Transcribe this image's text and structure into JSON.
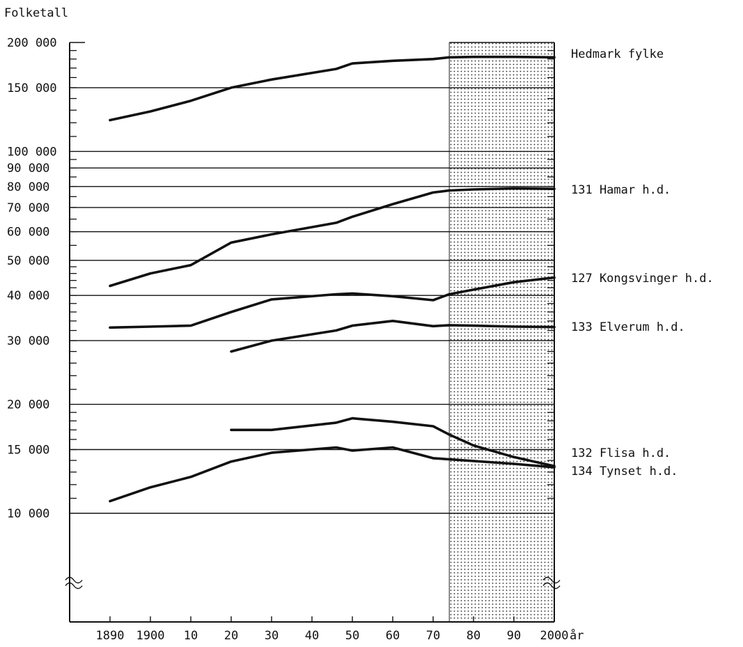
{
  "chart_data": {
    "type": "line",
    "ylabel": "Folketall",
    "x_unit_label": "år",
    "y_scale": "log",
    "ylim": [
      10000,
      200000
    ],
    "xlim": [
      1880,
      2000
    ],
    "y_ticks": [
      {
        "value": 200000,
        "label": "200 000"
      },
      {
        "value": 150000,
        "label": "150 000"
      },
      {
        "value": 100000,
        "label": "100 000"
      },
      {
        "value": 90000,
        "label": "90 000"
      },
      {
        "value": 80000,
        "label": "80 000"
      },
      {
        "value": 70000,
        "label": "70 000"
      },
      {
        "value": 60000,
        "label": "60 000"
      },
      {
        "value": 50000,
        "label": "50 000"
      },
      {
        "value": 40000,
        "label": "40 000"
      },
      {
        "value": 30000,
        "label": "30 000"
      },
      {
        "value": 20000,
        "label": "20 000"
      },
      {
        "value": 15000,
        "label": "15 000"
      },
      {
        "value": 10000,
        "label": "10 000"
      }
    ],
    "x_ticks": [
      {
        "value": 1890,
        "label": "1890"
      },
      {
        "value": 1900,
        "label": "1900"
      },
      {
        "value": 1910,
        "label": "10"
      },
      {
        "value": 1920,
        "label": "20"
      },
      {
        "value": 1930,
        "label": "30"
      },
      {
        "value": 1940,
        "label": "40"
      },
      {
        "value": 1950,
        "label": "50"
      },
      {
        "value": 1960,
        "label": "60"
      },
      {
        "value": 1970,
        "label": "70"
      },
      {
        "value": 1980,
        "label": "80"
      },
      {
        "value": 1990,
        "label": "90"
      },
      {
        "value": 2000,
        "label": "2000"
      }
    ],
    "projection_start": 1974,
    "grid": "horizontal",
    "series": [
      {
        "name": "Hedmark fylke",
        "x": [
          1890,
          1900,
          1910,
          1920,
          1930,
          1946,
          1950,
          1960,
          1970,
          1974,
          1980,
          1990,
          2000
        ],
        "y": [
          122000,
          129000,
          138000,
          150000,
          158000,
          169000,
          175000,
          178000,
          180000,
          182000,
          182500,
          182500,
          182000
        ]
      },
      {
        "name": "131 Hamar h.d.",
        "x": [
          1890,
          1900,
          1910,
          1920,
          1930,
          1946,
          1950,
          1960,
          1970,
          1974,
          1980,
          1990,
          2000
        ],
        "y": [
          42500,
          46000,
          48500,
          56000,
          59000,
          63500,
          66000,
          71500,
          77000,
          78000,
          78500,
          79000,
          78800
        ]
      },
      {
        "name": "127 Kongsvinger h.d.",
        "x": [
          1890,
          1900,
          1910,
          1920,
          1930,
          1946,
          1950,
          1960,
          1970,
          1974,
          1980,
          1990,
          2000
        ],
        "y": [
          32600,
          32800,
          33000,
          36000,
          39000,
          40300,
          40500,
          39800,
          38800,
          40300,
          41500,
          43500,
          44800
        ]
      },
      {
        "name": "133 Elverum h.d.",
        "x": [
          1920,
          1930,
          1946,
          1950,
          1960,
          1970,
          1974,
          1980,
          1990,
          2000
        ],
        "y": [
          28000,
          30000,
          32000,
          33000,
          34000,
          32900,
          33100,
          33000,
          32800,
          32700
        ]
      },
      {
        "name": "132 Flisa h.d.",
        "x": [
          1920,
          1930,
          1946,
          1950,
          1960,
          1970,
          1974,
          1980,
          1990,
          2000
        ],
        "y": [
          17000,
          17000,
          17800,
          18300,
          17900,
          17400,
          16500,
          15400,
          14300,
          13500
        ]
      },
      {
        "name": "134 Tynset h.d.",
        "x": [
          1890,
          1900,
          1910,
          1920,
          1930,
          1946,
          1950,
          1960,
          1970,
          1974,
          1980,
          1990,
          2000
        ],
        "y": [
          10800,
          11800,
          12600,
          13900,
          14700,
          15200,
          14900,
          15200,
          14200,
          14100,
          13950,
          13700,
          13400
        ]
      }
    ]
  }
}
